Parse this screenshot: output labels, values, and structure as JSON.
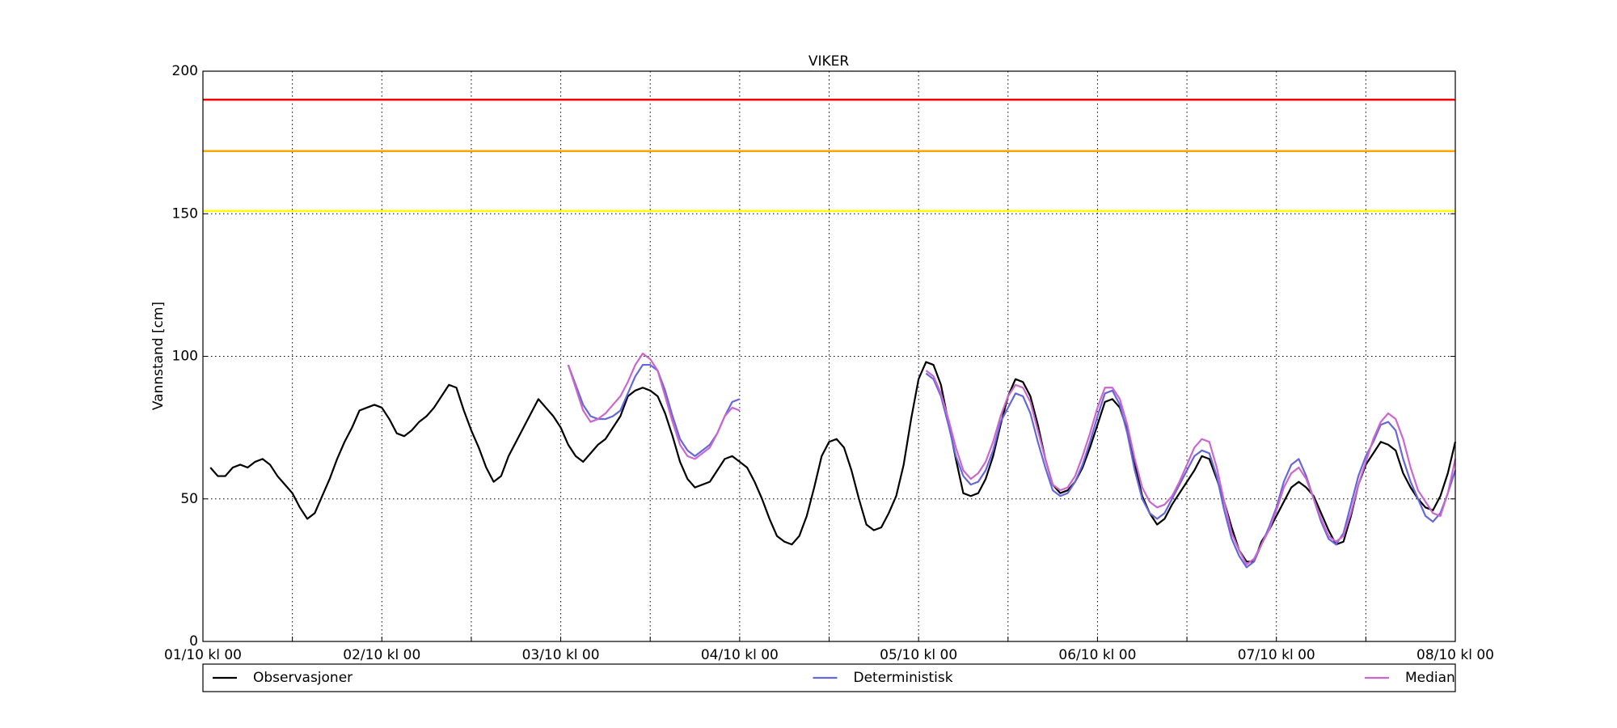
{
  "chart_data": {
    "type": "line",
    "title": "VIKER",
    "ylabel": "Vannstand [cm]",
    "xlim": [
      0,
      168
    ],
    "ylim": [
      0,
      200
    ],
    "xticks": [
      {
        "value": 0,
        "label": "01/10 kl 00"
      },
      {
        "value": 24,
        "label": "02/10 kl 00"
      },
      {
        "value": 48,
        "label": "03/10 kl 00"
      },
      {
        "value": 72,
        "label": "04/10 kl 00"
      },
      {
        "value": 96,
        "label": "05/10 kl 00"
      },
      {
        "value": 120,
        "label": "06/10 kl 00"
      },
      {
        "value": 144,
        "label": "07/10 kl 00"
      },
      {
        "value": 168,
        "label": "08/10 kl 00"
      }
    ],
    "xminorticks": [
      12,
      36,
      60,
      84,
      108,
      132,
      156
    ],
    "yticks": [
      0,
      50,
      100,
      150,
      200
    ],
    "grid": true,
    "hlines": [
      {
        "value": 190,
        "color": "#ff0000"
      },
      {
        "value": 172,
        "color": "#ffa500"
      },
      {
        "value": 151,
        "color": "#ffff00"
      }
    ],
    "x": [
      1,
      2,
      3,
      4,
      5,
      6,
      7,
      8,
      9,
      10,
      11,
      12,
      13,
      14,
      15,
      16,
      17,
      18,
      19,
      20,
      21,
      22,
      23,
      24,
      25,
      26,
      27,
      28,
      29,
      30,
      31,
      32,
      33,
      34,
      35,
      36,
      37,
      38,
      39,
      40,
      41,
      42,
      43,
      44,
      45,
      46,
      47,
      48,
      49,
      50,
      51,
      52,
      53,
      54,
      55,
      56,
      57,
      58,
      59,
      60,
      61,
      62,
      63,
      64,
      65,
      66,
      67,
      68,
      69,
      70,
      71,
      72,
      73,
      74,
      75,
      76,
      77,
      78,
      79,
      80,
      81,
      82,
      83,
      84,
      85,
      86,
      87,
      88,
      89,
      90,
      91,
      92,
      93,
      94,
      95,
      96,
      97,
      98,
      99,
      100,
      101,
      102,
      103,
      104,
      105,
      106,
      107,
      108,
      109,
      110,
      111,
      112,
      113,
      114,
      115,
      116,
      117,
      118,
      119,
      120,
      121,
      122,
      123,
      124,
      125,
      126,
      127,
      128,
      129,
      130,
      131,
      132,
      133,
      134,
      135,
      136,
      137,
      138,
      139,
      140,
      141,
      142,
      143,
      144,
      145,
      146,
      147,
      148,
      149,
      150,
      151,
      152,
      153,
      154,
      155,
      156,
      157,
      158,
      159,
      160,
      161,
      162,
      163,
      164,
      165,
      166,
      167,
      168
    ],
    "series": [
      {
        "name": "Observasjoner",
        "color": "#000000",
        "values": [
          61,
          58,
          58,
          61,
          62,
          61,
          63,
          64,
          62,
          58,
          55,
          52,
          47,
          43,
          45,
          51,
          57,
          64,
          70,
          75,
          81,
          82,
          83,
          82,
          78,
          73,
          72,
          74,
          77,
          79,
          82,
          86,
          90,
          89,
          81,
          74,
          68,
          61,
          56,
          58,
          65,
          70,
          75,
          80,
          85,
          82,
          79,
          75,
          69,
          65,
          63,
          66,
          69,
          71,
          75,
          79,
          86,
          88,
          89,
          88,
          86,
          80,
          72,
          63,
          57,
          54,
          55,
          56,
          60,
          64,
          65,
          63,
          61,
          56,
          50,
          43,
          37,
          35,
          34,
          37,
          44,
          54,
          65,
          70,
          71,
          68,
          60,
          50,
          41,
          39,
          40,
          45,
          51,
          62,
          78,
          92,
          98,
          97,
          90,
          77,
          64,
          52,
          51,
          52,
          57,
          65,
          76,
          86,
          92,
          91,
          86,
          76,
          64,
          55,
          52,
          53,
          56,
          61,
          68,
          76,
          84,
          85,
          82,
          74,
          62,
          51,
          45,
          41,
          43,
          48,
          52,
          56,
          60,
          65,
          64,
          57,
          49,
          40,
          32,
          28,
          28,
          35,
          39,
          44,
          49,
          54,
          56,
          54,
          51,
          45,
          39,
          34,
          35,
          44,
          55,
          62,
          66,
          70,
          69,
          67,
          59,
          54,
          50,
          47,
          46,
          51,
          59,
          70
        ]
      },
      {
        "name": "Deterministisk",
        "color": "#6666dd",
        "values": [
          null,
          null,
          null,
          null,
          null,
          null,
          null,
          null,
          null,
          null,
          null,
          null,
          null,
          null,
          null,
          null,
          null,
          null,
          null,
          null,
          null,
          null,
          null,
          null,
          null,
          null,
          null,
          null,
          null,
          null,
          null,
          null,
          null,
          null,
          null,
          null,
          null,
          null,
          null,
          null,
          null,
          null,
          null,
          null,
          null,
          null,
          null,
          null,
          97,
          90,
          83,
          79,
          78,
          78,
          79,
          81,
          87,
          93,
          97,
          97,
          95,
          88,
          79,
          71,
          67,
          65,
          67,
          69,
          73,
          79,
          84,
          85,
          null,
          null,
          null,
          null,
          null,
          null,
          null,
          null,
          null,
          null,
          null,
          null,
          null,
          null,
          null,
          null,
          null,
          null,
          null,
          null,
          null,
          null,
          null,
          null,
          94,
          92,
          86,
          76,
          65,
          58,
          55,
          56,
          60,
          67,
          77,
          82,
          87,
          86,
          80,
          70,
          61,
          53,
          51,
          52,
          56,
          62,
          70,
          79,
          87,
          88,
          83,
          73,
          60,
          50,
          45,
          43,
          45,
          50,
          55,
          60,
          65,
          67,
          66,
          58,
          46,
          36,
          30,
          26,
          28,
          34,
          40,
          47,
          56,
          62,
          64,
          58,
          50,
          42,
          36,
          34,
          38,
          48,
          58,
          65,
          70,
          76,
          77,
          74,
          64,
          56,
          50,
          44,
          42,
          45,
          52,
          60
        ]
      },
      {
        "name": "Median",
        "color": "#cc66cc",
        "values": [
          null,
          null,
          null,
          null,
          null,
          null,
          null,
          null,
          null,
          null,
          null,
          null,
          null,
          null,
          null,
          null,
          null,
          null,
          null,
          null,
          null,
          null,
          null,
          null,
          null,
          null,
          null,
          null,
          null,
          null,
          null,
          null,
          null,
          null,
          null,
          null,
          null,
          null,
          null,
          null,
          null,
          null,
          null,
          null,
          null,
          null,
          null,
          null,
          97,
          89,
          81,
          77,
          78,
          80,
          83,
          86,
          91,
          97,
          101,
          99,
          95,
          86,
          77,
          69,
          65,
          64,
          66,
          68,
          73,
          79,
          82,
          81,
          null,
          null,
          null,
          null,
          null,
          null,
          null,
          null,
          null,
          null,
          null,
          null,
          null,
          null,
          null,
          null,
          null,
          null,
          null,
          null,
          null,
          null,
          null,
          null,
          95,
          93,
          87,
          78,
          68,
          60,
          57,
          59,
          63,
          70,
          79,
          86,
          90,
          89,
          84,
          74,
          64,
          55,
          53,
          54,
          58,
          65,
          73,
          82,
          89,
          89,
          85,
          76,
          64,
          54,
          49,
          47,
          48,
          51,
          56,
          62,
          68,
          71,
          70,
          61,
          49,
          38,
          32,
          27,
          29,
          34,
          39,
          46,
          54,
          59,
          61,
          57,
          50,
          43,
          37,
          35,
          37,
          45,
          55,
          63,
          71,
          77,
          80,
          78,
          71,
          61,
          53,
          49,
          45,
          44,
          52,
          64
        ]
      }
    ]
  }
}
